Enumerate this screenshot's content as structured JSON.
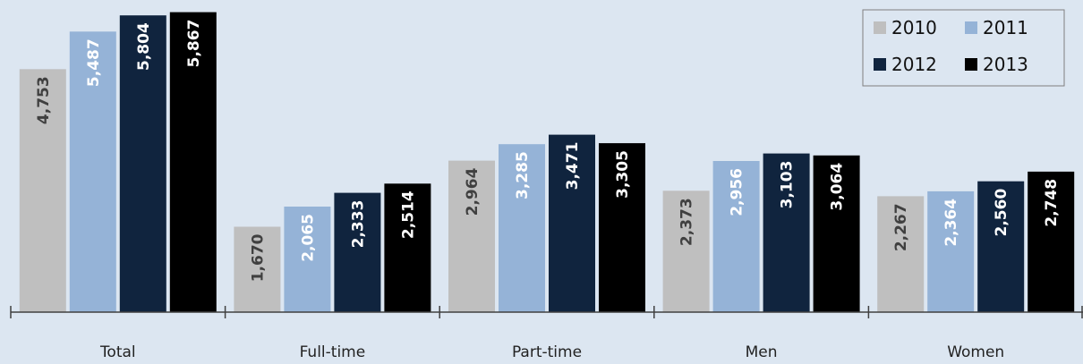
{
  "chart_data": {
    "type": "bar",
    "categories": [
      "Total",
      "Full-time",
      "Part-time",
      "Men",
      "Women"
    ],
    "series": [
      {
        "name": "2010",
        "color": "#bfbfbf",
        "label_color": "#404040",
        "values": [
          4753,
          1670,
          2964,
          2373,
          2267
        ]
      },
      {
        "name": "2011",
        "color": "#95b3d7",
        "label_color": "#ffffff",
        "values": [
          5487,
          2065,
          3285,
          2956,
          2364
        ]
      },
      {
        "name": "2012",
        "color": "#10243e",
        "label_color": "#ffffff",
        "values": [
          5804,
          2333,
          3471,
          3103,
          2560
        ]
      },
      {
        "name": "2013",
        "color": "#000000",
        "label_color": "#ffffff",
        "values": [
          5867,
          2514,
          3305,
          3064,
          2748
        ]
      }
    ],
    "value_labels": [
      [
        "4,753",
        "1,670",
        "2,964",
        "2,373",
        "2,267"
      ],
      [
        "5,487",
        "2,065",
        "3,285",
        "2,956",
        "2,364"
      ],
      [
        "5,804",
        "2,333",
        "3,471",
        "3,103",
        "2,560"
      ],
      [
        "5,867",
        "2,514",
        "3,305",
        "3,064",
        "2,748"
      ]
    ],
    "ylim": [
      0,
      6000
    ],
    "grid": false,
    "legend": "top-right",
    "title": "",
    "xlabel": "",
    "ylabel": ""
  }
}
